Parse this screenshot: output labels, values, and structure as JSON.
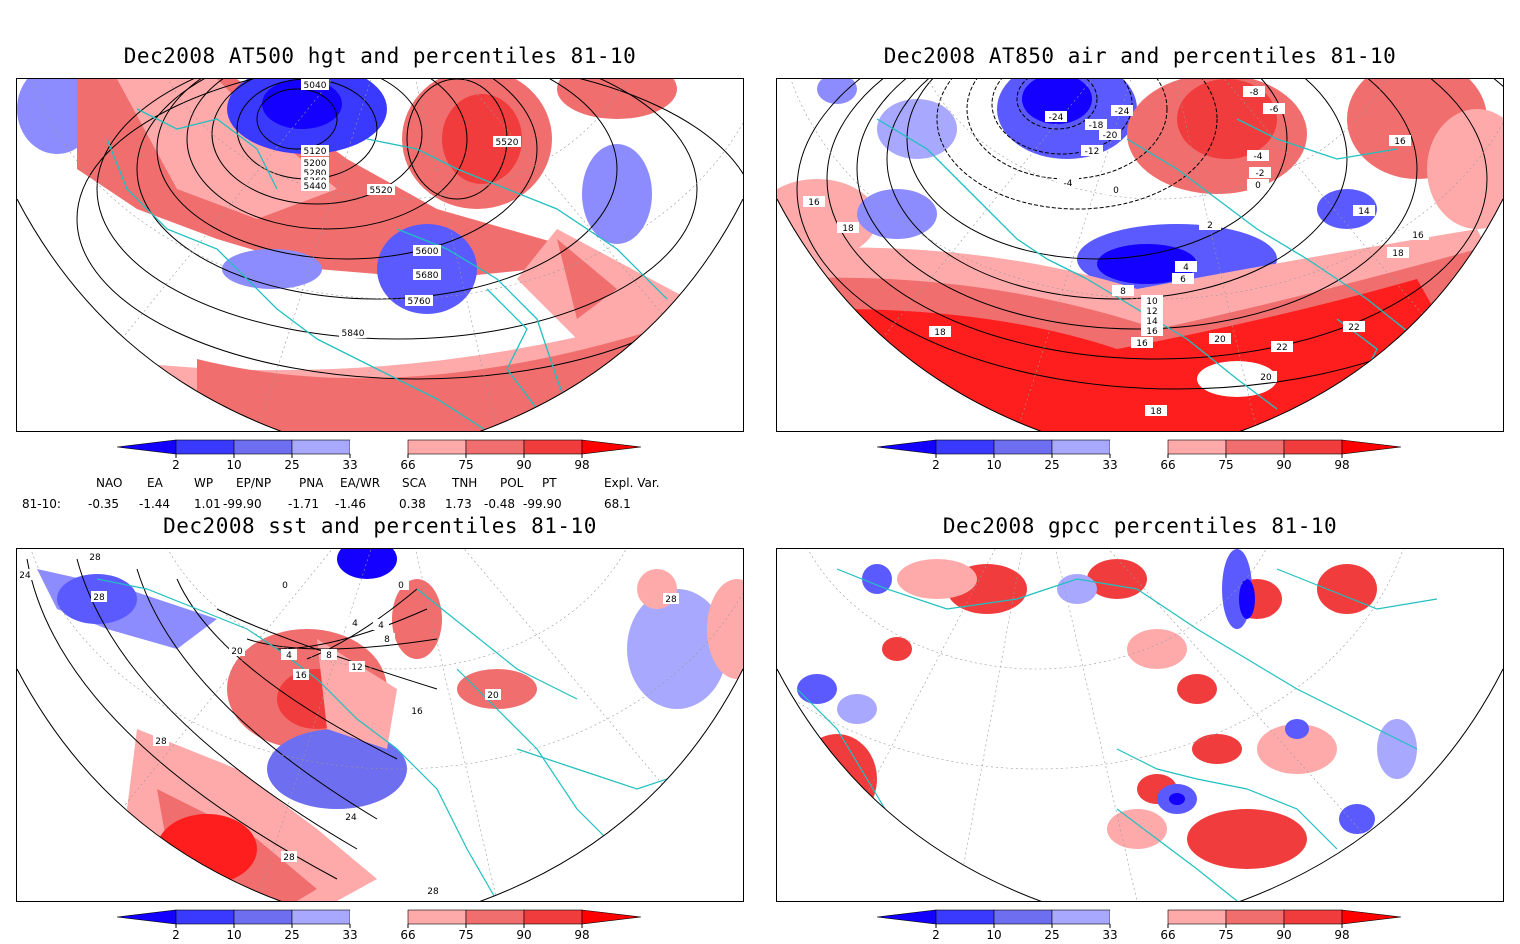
{
  "panels": [
    {
      "id": "p1",
      "title": "Dec2008 AT500 hgt and percentiles 81-10",
      "contour_labels": [
        "5040",
        "5120",
        "5200",
        "5280",
        "5360",
        "5440",
        "5520",
        "5520",
        "5600",
        "5680",
        "5760",
        "5840"
      ]
    },
    {
      "id": "p2",
      "title": "Dec2008 AT850 air and percentiles 81-10",
      "contour_labels": [
        "-24",
        "-24",
        "-18",
        "-20",
        "-12",
        "-4",
        "0",
        "-8",
        "-6",
        "-4",
        "-2",
        "0",
        "2",
        "4",
        "6",
        "8",
        "10",
        "12",
        "14",
        "16",
        "16",
        "16",
        "16",
        "18",
        "18",
        "18",
        "20",
        "20",
        "22",
        "22",
        "14",
        "16",
        "18"
      ]
    },
    {
      "id": "p3",
      "title": "Dec2008 sst and percentiles 81-10",
      "contour_labels": [
        "24",
        "28",
        "28",
        "20",
        "4",
        "8",
        "12",
        "16",
        "16",
        "20",
        "0",
        "0",
        "4",
        "4",
        "8",
        "28",
        "28",
        "24",
        "28",
        "28"
      ]
    },
    {
      "id": "p4",
      "title": "Dec2008 gpcc percentiles 81-10",
      "contour_labels": []
    }
  ],
  "colorbar": {
    "ticks": [
      "2",
      "10",
      "25",
      "33",
      "66",
      "75",
      "90",
      "98"
    ],
    "colors": [
      "#1400ff",
      "#3a3aff",
      "#6e6ef0",
      "#a8a8ff",
      "#ffffff",
      "#ffaaaa",
      "#f06e6e",
      "#f03c3c",
      "#ff0000"
    ]
  },
  "teleconnection": {
    "headers": [
      "NAO",
      "EA",
      "WP",
      "EP/NP",
      "PNA",
      "EA/WR",
      "SCA",
      "TNH",
      "POL",
      "PT",
      "Expl. Var."
    ],
    "row_label": "81-10:",
    "values": [
      "-0.35",
      "-1.44",
      "1.01",
      "-99.90",
      "-1.71",
      "-1.46",
      "0.38",
      "1.73",
      "-0.48",
      "-99.90",
      "68.1"
    ]
  }
}
